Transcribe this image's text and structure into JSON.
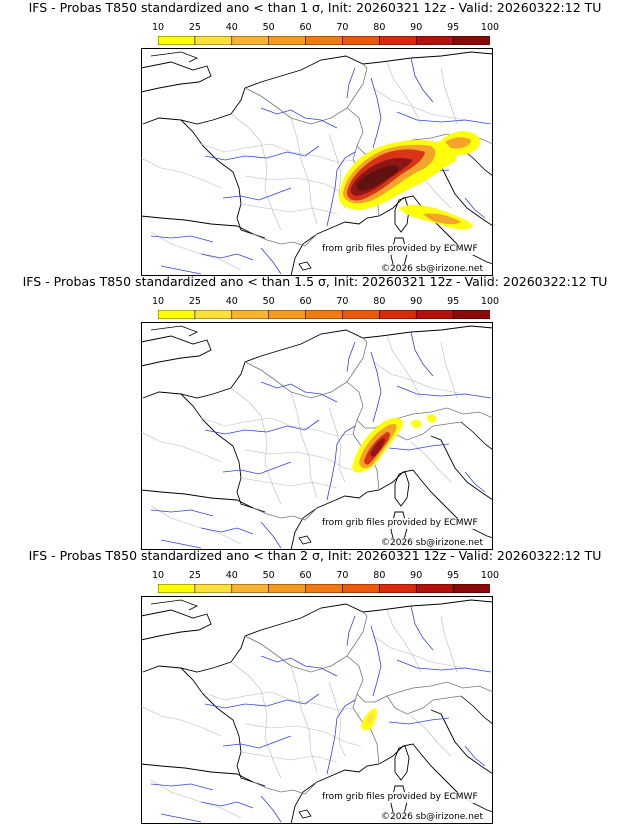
{
  "panels": [
    {
      "title": "IFS - Probas T850  standardized ano < than 1 σ, Init: 20260321 12z - Valid: 20260322:12 TU",
      "threshold_sigma": 1
    },
    {
      "title": "IFS - Probas T850  standardized ano < than 1.5 σ, Init: 20260321 12z - Valid: 20260322:12 TU",
      "threshold_sigma": 1.5
    },
    {
      "title": "IFS - Probas T850  standardized ano < than 2 σ, Init: 20260321 12z - Valid: 20260322:12 TU",
      "threshold_sigma": 2
    }
  ],
  "colorbar": {
    "ticks": [
      "10",
      "25",
      "40",
      "50",
      "60",
      "70",
      "80",
      "90",
      "95",
      "100"
    ],
    "colors": [
      "#ffff00",
      "#fde03a",
      "#f8b431",
      "#f59a20",
      "#f07b12",
      "#ea5a0a",
      "#d92a0c",
      "#b3110c",
      "#8a0a0a",
      "#5a0505"
    ]
  },
  "credits": {
    "source": "from grib files provided by ECMWF",
    "copyright": "©2026 sb@irizone.net"
  }
}
